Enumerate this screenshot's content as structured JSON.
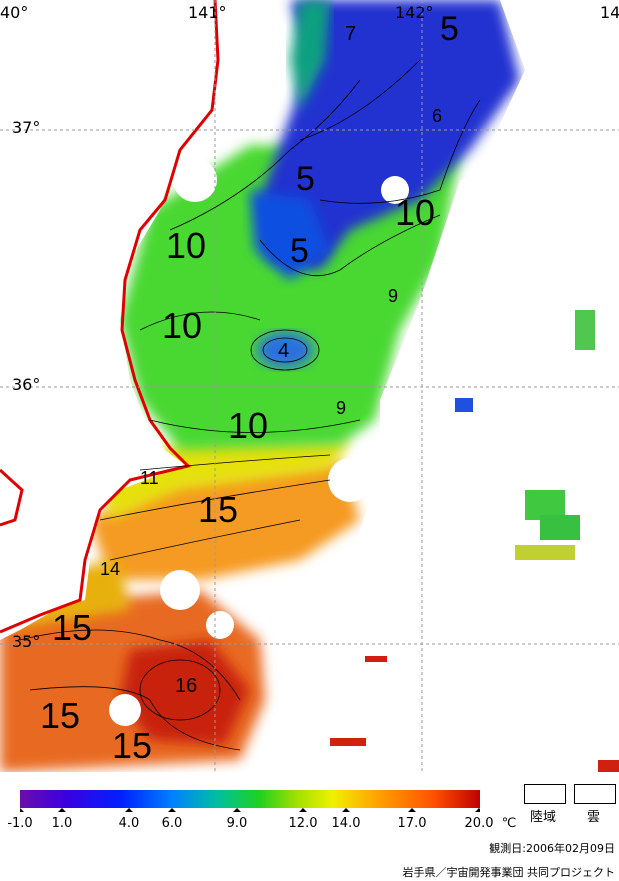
{
  "map": {
    "lon_labels": [
      "40°",
      "141°",
      "142°",
      "14"
    ],
    "lat_labels": [
      "37°",
      "36°",
      "35°"
    ],
    "contour_labels": [
      "5",
      "7",
      "6",
      "5",
      "10",
      "5",
      "9",
      "10",
      "10",
      "4",
      "9",
      "10",
      "11",
      "15",
      "14",
      "15",
      "16",
      "15",
      "15"
    ],
    "colors": {
      "coastline": "#e00000",
      "grid": "#9a9a9a"
    }
  },
  "legend": {
    "ticks": [
      "-1.0",
      "1.0",
      "4.0",
      "6.0",
      "9.0",
      "12.0",
      "14.0",
      "17.0",
      "20.0"
    ],
    "unit": "℃",
    "land_label": "陸域",
    "cloud_label": "雲",
    "gradient": [
      "#6a0dad",
      "#3b00e0",
      "#0020ff",
      "#0080ff",
      "#00d0a0",
      "#20d020",
      "#a0e000",
      "#f0f000",
      "#ffa000",
      "#ff5000",
      "#c00000"
    ]
  },
  "footer": {
    "date": "観測日:2006年02月09日",
    "credit": "岩手県／宇宙開発事業団 共同プロジェクト"
  }
}
